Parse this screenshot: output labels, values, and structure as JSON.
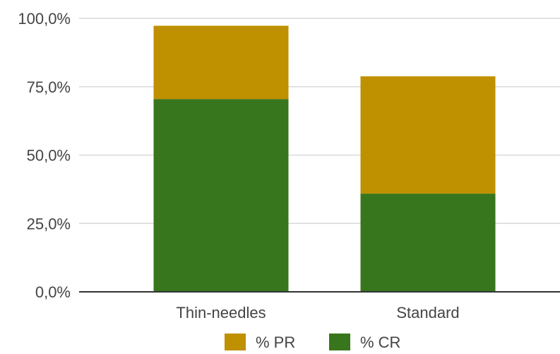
{
  "chart_data": {
    "type": "bar",
    "stacked": true,
    "categories": [
      "Thin-needles",
      "Standard"
    ],
    "series": [
      {
        "name": "% CR",
        "values": [
          70.5,
          35.9
        ],
        "color": "#38761d"
      },
      {
        "name": "% PR",
        "values": [
          26.8,
          42.9
        ],
        "color": "#bf9000"
      }
    ],
    "ylim": [
      0,
      100
    ],
    "yticks": [
      0,
      25,
      50,
      75,
      100
    ],
    "ytick_labels": [
      "0,0%",
      "25,0%",
      "50,0%",
      "75,0%",
      "100,0%"
    ],
    "title": "",
    "xlabel": "",
    "ylabel": "",
    "legend": {
      "position": "bottom",
      "entries": [
        {
          "label": "% PR",
          "color": "#bf9000"
        },
        {
          "label": "% CR",
          "color": "#38761d"
        }
      ]
    },
    "grid": true,
    "colors": {
      "grid": "#d9d9d9",
      "baseline": "#333333",
      "tick_text": "#444444"
    }
  }
}
